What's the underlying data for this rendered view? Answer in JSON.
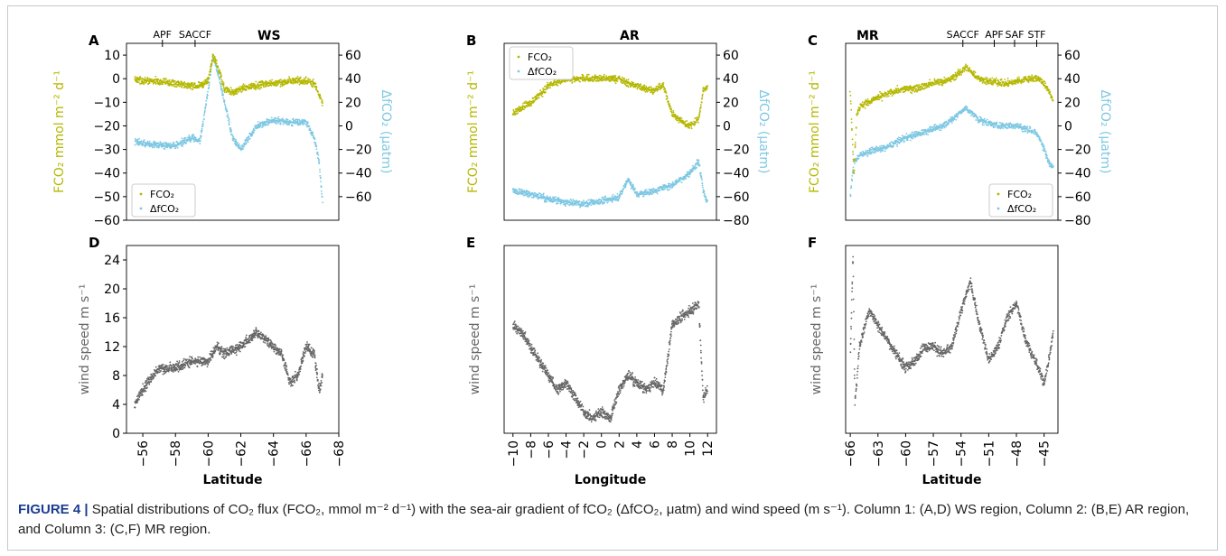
{
  "caption": {
    "label": "FIGURE 4 |",
    "text": "Spatial distributions of CO₂ flux (FCO₂, mmol m⁻² d⁻¹) with the sea-air gradient of fCO₂ (ΔfCO₂, μatm) and wind speed (m s⁻¹). Column 1: (A,D) WS region, Column 2: (B,E) AR region, and Column 3: (C,F) MR region."
  },
  "colors": {
    "fco2": "#b5b800",
    "dfco2": "#7ec8e3",
    "wind": "#666666"
  },
  "chart_data": [
    {
      "id": "A",
      "type": "scatter",
      "panel_label": "A",
      "region_label": "WS",
      "front_labels": [
        "APF",
        "SACCF"
      ],
      "front_positions": [
        -57.2,
        -59.2
      ],
      "xlim": [
        -55,
        -68
      ],
      "ylim_left": [
        -60,
        15
      ],
      "ylim_right": [
        -80,
        70
      ],
      "yticks_left": [
        10,
        0,
        -10,
        -20,
        -30,
        -40,
        -50,
        -60
      ],
      "yticks_right": [
        60,
        40,
        20,
        0,
        -20,
        -40,
        -60
      ],
      "ylabel_left": "FCO₂ mmol m⁻² d⁻¹",
      "ylabel_right": "ΔfCO₂ (μatm)",
      "legend": [
        "FCO₂",
        "ΔfCO₂"
      ],
      "legend_position": "lower-left",
      "series": [
        {
          "name": "FCO₂",
          "axis": "left",
          "x": [
            -55.5,
            -56,
            -57,
            -58,
            -59,
            -59.5,
            -60,
            -60.3,
            -60.6,
            -61,
            -61.5,
            -62,
            -63,
            -64,
            -65,
            -66,
            -66.5,
            -67
          ],
          "y": [
            0,
            -1,
            -1,
            -2,
            -3,
            -3,
            -1,
            10,
            5,
            -4,
            -6,
            -4,
            -3,
            -2,
            -1,
            -1,
            -2,
            -10
          ]
        },
        {
          "name": "ΔfCO₂",
          "axis": "right",
          "x": [
            -55.5,
            -56,
            -57,
            -58,
            -59,
            -59.5,
            -60,
            -60.3,
            -60.6,
            -61,
            -61.5,
            -62,
            -62.5,
            -63,
            -64,
            -65,
            -66,
            -66.5,
            -66.8,
            -67
          ],
          "y": [
            -13,
            -15,
            -16,
            -17,
            -10,
            -14,
            30,
            60,
            45,
            20,
            -10,
            -20,
            -10,
            0,
            5,
            3,
            3,
            -10,
            -30,
            -65
          ]
        }
      ]
    },
    {
      "id": "B",
      "type": "scatter",
      "panel_label": "B",
      "region_label": "AR",
      "xlim": [
        -11,
        13
      ],
      "ylim_left": [
        -60,
        15
      ],
      "ylim_right": [
        -80,
        70
      ],
      "yticks_right": [
        60,
        40,
        20,
        0,
        -20,
        -40,
        -60,
        -80
      ],
      "ylabel_left": "FCO₂ mmol m⁻² d⁻¹",
      "ylabel_right": "ΔfCO₂ (μatm)",
      "legend": [
        "FCO₂",
        "ΔfCO₂"
      ],
      "legend_position": "upper-left",
      "series": [
        {
          "name": "FCO₂",
          "axis": "left",
          "x": [
            -10,
            -9,
            -8,
            -7,
            -6,
            -4,
            -2,
            0,
            2,
            3,
            4,
            6,
            7,
            8,
            9,
            10,
            11,
            11.5,
            12
          ],
          "y": [
            -15,
            -12,
            -10,
            -7,
            -3,
            0,
            0,
            0,
            0,
            -2,
            -3,
            -5,
            -3,
            -15,
            -18,
            -20,
            -17,
            -5,
            -3
          ]
        },
        {
          "name": "ΔfCO₂",
          "axis": "right",
          "x": [
            -10,
            -8,
            -6,
            -4,
            -2,
            0,
            2,
            3,
            4,
            6,
            8,
            10,
            11,
            11.5,
            12
          ],
          "y": [
            -55,
            -58,
            -62,
            -65,
            -66,
            -64,
            -60,
            -45,
            -58,
            -55,
            -50,
            -40,
            -30,
            -55,
            -65
          ]
        }
      ]
    },
    {
      "id": "C",
      "type": "scatter",
      "panel_label": "C",
      "region_label": "MR",
      "front_labels": [
        "SACCF",
        "APF",
        "SAF",
        "STF"
      ],
      "front_positions": [
        -53.8,
        -50.4,
        -48.2,
        -45.8
      ],
      "xlim": [
        -66.5,
        -43.5
      ],
      "ylim_left": [
        -60,
        15
      ],
      "ylim_right": [
        -80,
        70
      ],
      "yticks_right": [
        60,
        40,
        20,
        0,
        -20,
        -40,
        -60,
        -80
      ],
      "ylabel_left": "FCO₂ mmol m⁻² d⁻¹",
      "ylabel_right": "ΔfCO₂ (μatm)",
      "legend": [
        "FCO₂",
        "ΔfCO₂"
      ],
      "legend_position": "lower-right",
      "series": [
        {
          "name": "FCO₂",
          "axis": "left",
          "x": [
            -66,
            -65.6,
            -65.3,
            -65,
            -64,
            -63,
            -61,
            -59,
            -57,
            -55,
            -54,
            -53.5,
            -52,
            -51,
            -49,
            -47,
            -45.5,
            -44.5,
            -44
          ],
          "y": [
            -5,
            -40,
            -15,
            -12,
            -10,
            -8,
            -5,
            -4,
            -2,
            0,
            3,
            5,
            0,
            -1,
            -2,
            0,
            0,
            -5,
            -10
          ]
        },
        {
          "name": "ΔfCO₂",
          "axis": "right",
          "x": [
            -66,
            -65.6,
            -65,
            -64,
            -62,
            -60,
            -58,
            -56,
            -55,
            -54,
            -53.5,
            -52,
            -50,
            -48,
            -46,
            -45.5,
            -45,
            -44.5,
            -44
          ],
          "y": [
            -60,
            -30,
            -25,
            -22,
            -18,
            -10,
            -5,
            0,
            5,
            12,
            15,
            5,
            0,
            0,
            -5,
            -10,
            -20,
            -30,
            -35
          ]
        }
      ]
    },
    {
      "id": "D",
      "type": "scatter",
      "panel_label": "D",
      "xlim": [
        -55,
        -68
      ],
      "ylim": [
        0,
        26
      ],
      "xticks": [
        -56,
        -58,
        -60,
        -62,
        -64,
        -66,
        -68
      ],
      "yticks": [
        0,
        4,
        8,
        12,
        16,
        20,
        24
      ],
      "xlabel": "Latitude",
      "ylabel": "wind speed m s⁻¹",
      "series": [
        {
          "name": "",
          "x": [
            -55.5,
            -56,
            -57,
            -58,
            -59,
            -60,
            -60.5,
            -61,
            -62,
            -63,
            -64,
            -64.5,
            -65,
            -65.5,
            -66,
            -66.5,
            -66.8,
            -67
          ],
          "y": [
            4,
            6,
            9,
            9,
            10,
            10,
            12,
            11,
            12,
            14,
            12,
            11,
            7,
            8,
            12,
            11,
            6,
            8
          ]
        }
      ]
    },
    {
      "id": "E",
      "type": "scatter",
      "panel_label": "E",
      "xlim": [
        -11,
        13
      ],
      "ylim": [
        0,
        26
      ],
      "xticks": [
        -10,
        -8,
        -6,
        -4,
        -2,
        0,
        2,
        4,
        6,
        8,
        10,
        12
      ],
      "xlabel": "Longitude",
      "ylabel": "wind speed m s⁻¹",
      "series": [
        {
          "name": "",
          "x": [
            -10,
            -9,
            -8,
            -7,
            -6,
            -5,
            -4,
            -3,
            -2,
            -1,
            0,
            1,
            2,
            3,
            4,
            5,
            6,
            7,
            8,
            9,
            10,
            11,
            11.5,
            12
          ],
          "y": [
            15,
            14,
            12,
            10,
            8,
            6,
            7,
            5,
            3,
            2,
            3,
            2,
            6,
            8,
            7,
            6,
            7,
            6,
            15,
            16,
            17,
            18,
            5,
            6
          ]
        }
      ]
    },
    {
      "id": "F",
      "type": "scatter",
      "panel_label": "F",
      "xlim": [
        -66.5,
        -43.5
      ],
      "ylim": [
        0,
        26
      ],
      "xticks": [
        -66,
        -63,
        -60,
        -57,
        -54,
        -51,
        -48,
        -45
      ],
      "xlabel": "Latitude",
      "ylabel": "wind speed m s⁻¹",
      "series": [
        {
          "name": "",
          "x": [
            -66,
            -65.7,
            -65.5,
            -65,
            -64,
            -63,
            -62,
            -61,
            -60,
            -59,
            -58,
            -57,
            -56,
            -55,
            -54,
            -53,
            -52,
            -51,
            -50,
            -49,
            -48,
            -47,
            -46,
            -45,
            -44.5,
            -44
          ],
          "y": [
            10,
            25,
            4,
            12,
            17,
            15,
            13,
            11,
            9,
            10,
            12,
            12,
            11,
            12,
            17,
            21,
            15,
            10,
            12,
            16,
            18,
            13,
            10,
            7,
            10,
            14
          ]
        }
      ]
    }
  ]
}
